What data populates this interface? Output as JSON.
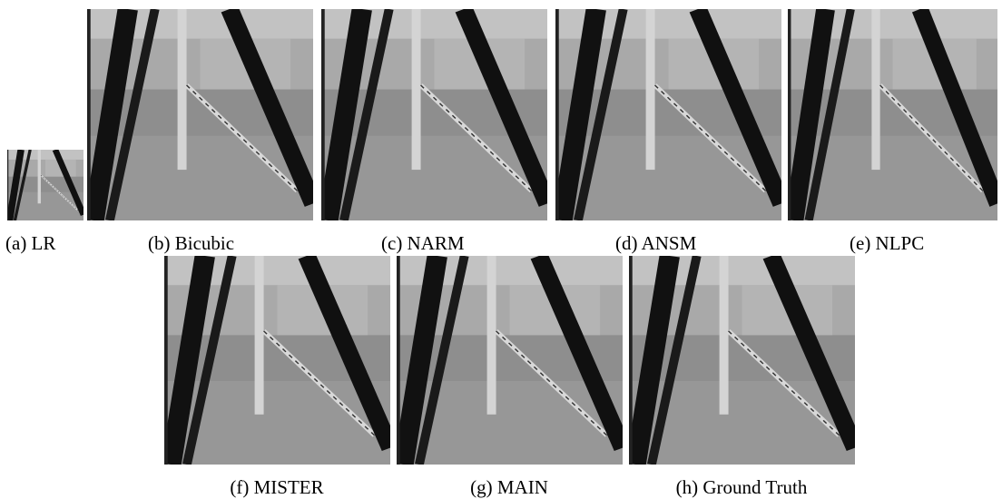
{
  "figure": {
    "panels": [
      {
        "caption": "(a) LR"
      },
      {
        "caption": "(b) Bicubic"
      },
      {
        "caption": "(c) NARM"
      },
      {
        "caption": "(d) ANSM"
      },
      {
        "caption": "(e) NLPC"
      },
      {
        "caption": "(f) MISTER"
      },
      {
        "caption": "(g) MAIN"
      },
      {
        "caption": "(h) Ground Truth"
      }
    ]
  }
}
